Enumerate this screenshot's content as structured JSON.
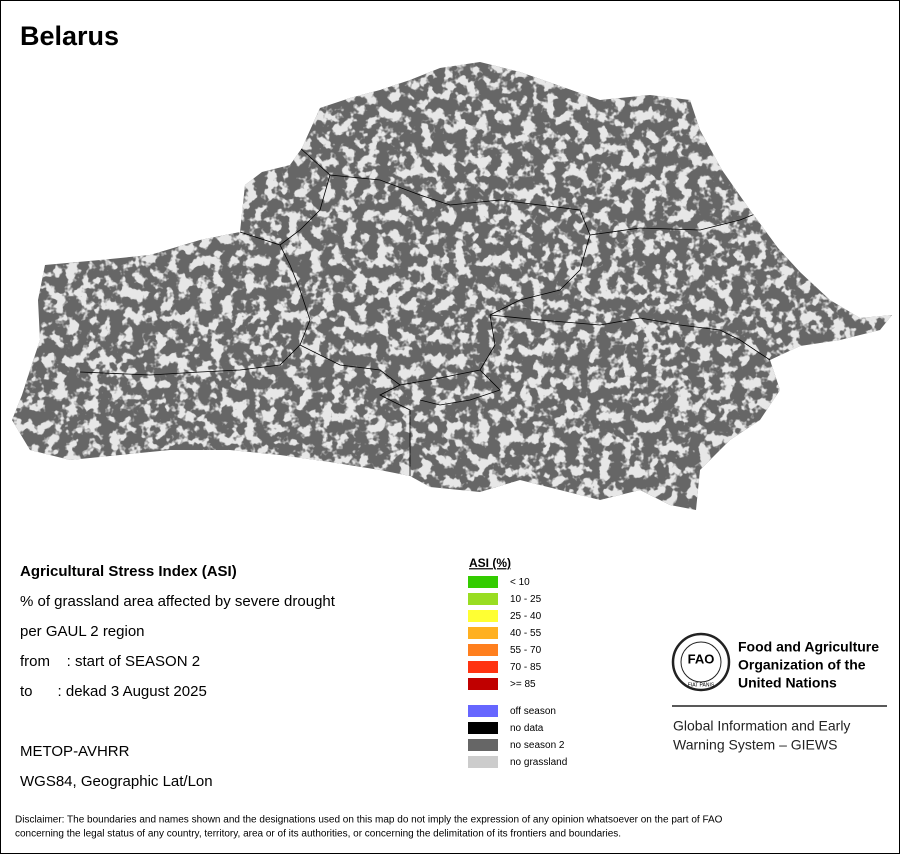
{
  "title": "Belarus",
  "info": {
    "lines": [
      "Agricultural Stress Index (ASI)",
      "% of grassland area affected by severe drought",
      "per GAUL 2 region",
      "from    : start of SEASON 2",
      "to      : dekad 3 August 2025",
      "METOP-AVHRR",
      "WGS84, Geographic Lat/Lon"
    ]
  },
  "legend": {
    "title": "ASI (%)",
    "items": [
      {
        "label": "< 10",
        "color": "#33cc00"
      },
      {
        "label": "10 - 25",
        "color": "#99dd22"
      },
      {
        "label": "25 - 40",
        "color": "#ffff33"
      },
      {
        "label": "40 - 55",
        "color": "#ffb020"
      },
      {
        "label": "55 - 70",
        "color": "#ff7f1e"
      },
      {
        "label": "70 - 85",
        "color": "#ff3311"
      },
      {
        "label": ">= 85",
        "color": "#c00000"
      }
    ],
    "extra": [
      {
        "label": "off season",
        "color": "#6666ff"
      },
      {
        "label": "no data",
        "color": "#000000"
      },
      {
        "label": "no season 2",
        "color": "#666666"
      },
      {
        "label": "no grassland",
        "color": "#cccccc"
      }
    ]
  },
  "logo": {
    "emblem": "FAO",
    "motto": "FIAT PANIS",
    "org_lines": [
      "Food and Agriculture",
      "Organization of the",
      "United Nations"
    ],
    "giews_lines": [
      "Global Information and Early",
      "Warning System – GIEWS"
    ]
  },
  "disclaimer": [
    "Disclaimer: The boundaries and names shown and the designations used on this map do not imply the expression of any opinion whatsoever on the part of FAO",
    "concerning the legal status of any country, territory, area or of its authorities, or concerning the delimitation of its frontiers and boundaries."
  ]
}
